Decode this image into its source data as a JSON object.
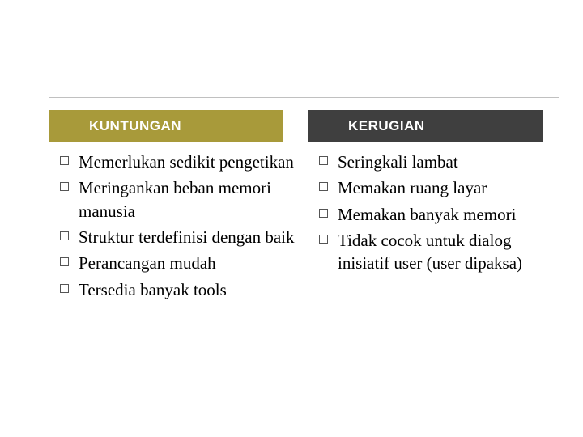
{
  "layout": {
    "accent_dark": "#3f3f3f",
    "accent_olive": "#a89a3a",
    "bullet_border": "#555555",
    "text_color": "#000000",
    "header_text_color": "#ffffff"
  },
  "left": {
    "header": "KUNTUNGAN",
    "items": [
      "Memerlukan sedikit pengetikan",
      "Meringankan beban memori manusia",
      "Struktur terdefinisi dengan baik",
      "Perancangan mudah",
      "Tersedia banyak tools"
    ]
  },
  "right": {
    "header": "KERUGIAN",
    "items": [
      "Seringkali lambat",
      "Memakan ruang layar",
      "Memakan banyak memori",
      "Tidak cocok untuk dialog inisiatif user (user dipaksa)"
    ]
  }
}
